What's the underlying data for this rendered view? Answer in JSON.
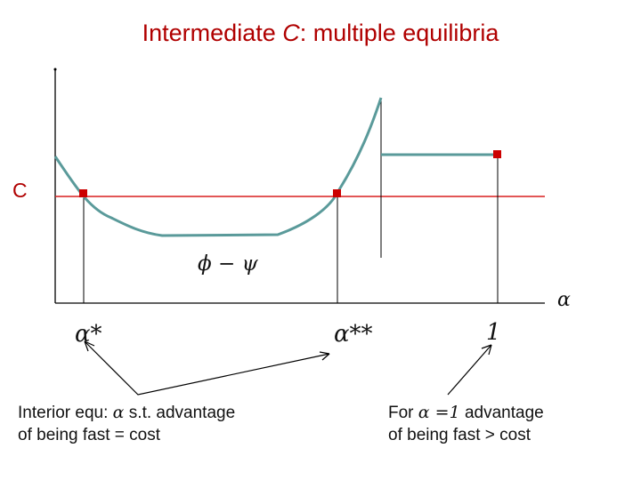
{
  "title": {
    "prefix": "Intermediate ",
    "italic": "C",
    "suffix": ": multiple equilibria"
  },
  "cost_label": "C",
  "curve_label": "ϕ − ψ",
  "x_axis_label": "α",
  "ticks": {
    "alpha_star": "α*",
    "alpha_double_star": "α**",
    "one": "1"
  },
  "notes": {
    "left": {
      "line1_prefix": "Interior equ: ",
      "line1_symbol": "α",
      "line1_suffix": " s.t. advantage",
      "line2": "of being fast = cost"
    },
    "right": {
      "line1_prefix": "For ",
      "line1_symbol": "α =1",
      "line1_suffix": " advantage",
      "line2": "of being fast > cost"
    }
  },
  "colors": {
    "title": "#b00000",
    "cost_line": "#d81e1e",
    "curve": "#5a9a9a",
    "marker": "#cc0000",
    "axis": "#000000"
  }
}
